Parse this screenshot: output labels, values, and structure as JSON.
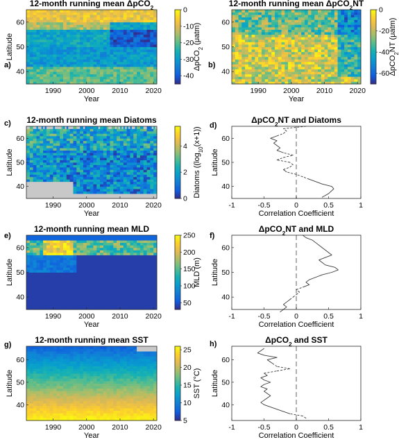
{
  "panel_letters": [
    "a)",
    "b)",
    "c)",
    "d)",
    "e)",
    "f)",
    "g)",
    "h)"
  ],
  "chart_data": [
    {
      "panel": "a)",
      "type": "heatmap",
      "title_parts": [
        {
          "t": "12-month running mean ΔpCO"
        },
        {
          "t": "2",
          "sub": true
        }
      ],
      "xlabel": "Year",
      "ylabel": "Latitude",
      "colorbar_label_parts": [
        {
          "t": "ΔpCO"
        },
        {
          "t": "2",
          "sub": true
        },
        {
          "t": " (μatm)"
        }
      ],
      "xlim": [
        1982,
        2021
      ],
      "ylim": [
        35,
        65
      ],
      "xticks": [
        1990,
        2000,
        2010,
        2020
      ],
      "yticks": [
        40,
        50,
        60
      ],
      "color_range": [
        -45,
        0
      ],
      "colorbar_ticks": [
        -40,
        -30,
        -20,
        -10,
        0
      ],
      "colormap": "parula"
    },
    {
      "panel": "b)",
      "type": "heatmap",
      "title_parts": [
        {
          "t": "12-month running mean ΔpCO"
        },
        {
          "t": "2",
          "sub": true
        },
        {
          "t": "NT"
        }
      ],
      "xlabel": "Year",
      "ylabel": "",
      "colorbar_label_parts": [
        {
          "t": "ΔpCO"
        },
        {
          "t": "2",
          "sub": true
        },
        {
          "t": "NT (μatm)"
        }
      ],
      "xlim": [
        1982,
        2021
      ],
      "ylim": [
        35,
        65
      ],
      "xticks": [
        1990,
        2000,
        2010,
        2020
      ],
      "yticks": [
        40,
        50,
        60
      ],
      "color_range": [
        -70,
        0
      ],
      "colorbar_ticks": [
        -60,
        -40,
        -20,
        0
      ],
      "colormap": "parula"
    },
    {
      "panel": "c)",
      "type": "heatmap",
      "title_parts": [
        {
          "t": "12-month running mean Diatoms"
        }
      ],
      "xlabel": "Year",
      "ylabel": "Latitude",
      "colorbar_label_parts": [
        {
          "t": "Diatoms ((log"
        },
        {
          "t": "10",
          "sub": true
        },
        {
          "t": "(x+1))"
        }
      ],
      "xlim": [
        1982,
        2021
      ],
      "ylim": [
        35,
        65
      ],
      "xticks": [
        1990,
        2000,
        2010,
        2020
      ],
      "yticks": [
        40,
        50,
        60
      ],
      "color_range": [
        0,
        5.5
      ],
      "colorbar_ticks": [
        0,
        2,
        4
      ],
      "colormap": "parula",
      "missing_color": "#c8c8c8"
    },
    {
      "panel": "d)",
      "type": "line",
      "title_parts": [
        {
          "t": "ΔpCO"
        },
        {
          "t": "2",
          "sub": true
        },
        {
          "t": "NT and Diatoms"
        }
      ],
      "xlabel": "Correlation Coefficient",
      "ylabel": "Latitude",
      "xlim": [
        -1,
        1
      ],
      "ylim": [
        35,
        65
      ],
      "xticks": [
        -1,
        -0.5,
        0,
        0.5,
        1
      ],
      "xtick_labels": [
        "-1",
        "-0.5",
        "0",
        "0.5",
        "1"
      ],
      "yticks": [
        40,
        50,
        60
      ],
      "zero_line": true,
      "y": [
        35.5,
        37,
        39,
        40,
        41,
        42,
        43,
        44,
        45,
        46,
        47,
        48,
        49,
        50,
        51,
        52,
        53,
        54,
        55,
        56,
        57,
        58,
        59,
        60,
        61,
        62,
        63,
        64,
        65
      ],
      "x": [
        0.4,
        0.5,
        0.58,
        0.55,
        0.4,
        0.3,
        0.2,
        0.1,
        0.0,
        -0.15,
        -0.2,
        -0.1,
        -0.05,
        -0.1,
        -0.3,
        -0.2,
        -0.05,
        -0.2,
        -0.3,
        -0.25,
        -0.3,
        -0.35,
        -0.3,
        -0.4,
        -0.3,
        -0.2,
        -0.15,
        -0.2,
        0.15
      ],
      "significant": [
        true,
        true,
        true,
        true,
        true,
        true,
        true,
        false,
        false,
        true,
        true,
        false,
        false,
        false,
        true,
        false,
        false,
        true,
        true,
        true,
        true,
        true,
        true,
        true,
        true,
        false,
        false,
        false,
        false
      ]
    },
    {
      "panel": "e)",
      "type": "heatmap",
      "title_parts": [
        {
          "t": "12-month running mean MLD"
        }
      ],
      "xlabel": "Year",
      "ylabel": "Latitude",
      "colorbar_label_parts": [
        {
          "t": "MLD (m)"
        }
      ],
      "xlim": [
        1982,
        2021
      ],
      "ylim": [
        35,
        65
      ],
      "xticks": [
        1990,
        2000,
        2010,
        2020
      ],
      "yticks": [
        40,
        50,
        60
      ],
      "color_range": [
        30,
        250
      ],
      "colorbar_ticks": [
        50,
        100,
        150,
        200,
        250
      ],
      "colormap": "parula"
    },
    {
      "panel": "f)",
      "type": "line",
      "title_parts": [
        {
          "t": "ΔpCO"
        },
        {
          "t": "2",
          "sub": true
        },
        {
          "t": "NT and MLD"
        }
      ],
      "xlabel": "Correlation Coefficient",
      "ylabel": "Latitude",
      "xlim": [
        -1,
        1
      ],
      "ylim": [
        35,
        65
      ],
      "xticks": [
        -1,
        -0.5,
        0,
        0.5,
        1
      ],
      "xtick_labels": [
        "-1",
        "-0.5",
        "0",
        "0.5",
        "1"
      ],
      "yticks": [
        40,
        50,
        60
      ],
      "zero_line": true,
      "y": [
        34,
        35,
        36,
        37,
        38,
        39,
        40,
        41,
        42,
        43,
        44,
        45,
        46,
        47,
        48,
        49,
        50,
        51,
        52,
        53,
        54,
        55,
        56,
        57,
        58,
        59,
        60,
        61,
        62,
        63,
        64,
        65
      ],
      "x": [
        -0.25,
        -0.2,
        -0.15,
        -0.2,
        -0.15,
        -0.1,
        -0.05,
        0.0,
        0.05,
        0.0,
        0.1,
        0.2,
        0.15,
        0.2,
        0.3,
        0.4,
        0.55,
        0.65,
        0.6,
        0.45,
        0.4,
        0.35,
        0.45,
        0.55,
        0.5,
        0.45,
        0.4,
        0.35,
        0.3,
        0.25,
        0.15,
        0.1
      ],
      "significant": [
        true,
        true,
        true,
        true,
        true,
        true,
        false,
        false,
        false,
        false,
        true,
        true,
        true,
        true,
        true,
        true,
        true,
        true,
        true,
        true,
        true,
        true,
        true,
        true,
        true,
        true,
        true,
        true,
        true,
        true,
        true,
        true
      ]
    },
    {
      "panel": "g)",
      "type": "heatmap",
      "title_parts": [
        {
          "t": "12-month running mean SST"
        }
      ],
      "xlabel": "Year",
      "ylabel": "Latitude",
      "colorbar_label_parts": [
        {
          "t": "SST (°C)"
        }
      ],
      "xlim": [
        1982,
        2021
      ],
      "ylim": [
        33,
        66
      ],
      "xticks": [
        1990,
        2000,
        2010,
        2020
      ],
      "yticks": [
        40,
        50,
        60
      ],
      "color_range": [
        5,
        26
      ],
      "colorbar_ticks": [
        5,
        10,
        15,
        20,
        25
      ],
      "colormap": "parula"
    },
    {
      "panel": "h)",
      "type": "line",
      "title_parts": [
        {
          "t": "ΔpCO"
        },
        {
          "t": "2",
          "sub": true
        },
        {
          "t": " and SST"
        }
      ],
      "xlabel": "Correlation Coefficient",
      "ylabel": "Latitude",
      "xlim": [
        -1,
        1
      ],
      "ylim": [
        33,
        66
      ],
      "xticks": [
        -1,
        -0.5,
        0,
        0.5,
        1
      ],
      "xtick_labels": [
        "-1",
        "-0.5",
        "0",
        "0.5",
        "1"
      ],
      "yticks": [
        40,
        50,
        60
      ],
      "zero_line": true,
      "y": [
        34,
        35,
        36,
        37,
        38,
        39,
        40,
        41,
        42,
        43,
        44,
        45,
        46,
        47,
        48,
        49,
        50,
        51,
        52,
        53,
        54,
        55,
        56,
        57,
        58,
        59,
        60,
        61,
        62,
        63,
        64,
        65
      ],
      "x": [
        0.15,
        0.1,
        -0.1,
        -0.2,
        -0.3,
        -0.4,
        -0.5,
        -0.55,
        -0.5,
        -0.45,
        -0.4,
        -0.45,
        -0.5,
        -0.45,
        -0.55,
        -0.5,
        -0.4,
        -0.5,
        -0.55,
        -0.45,
        -0.5,
        -0.3,
        -0.1,
        -0.3,
        -0.35,
        -0.4,
        -0.45,
        -0.3,
        -0.5,
        -0.6,
        -0.55,
        -0.5
      ],
      "significant": [
        false,
        false,
        true,
        true,
        true,
        true,
        true,
        true,
        true,
        true,
        true,
        true,
        true,
        true,
        true,
        true,
        true,
        true,
        true,
        true,
        true,
        false,
        false,
        false,
        true,
        true,
        true,
        true,
        true,
        true,
        true,
        true
      ]
    }
  ]
}
